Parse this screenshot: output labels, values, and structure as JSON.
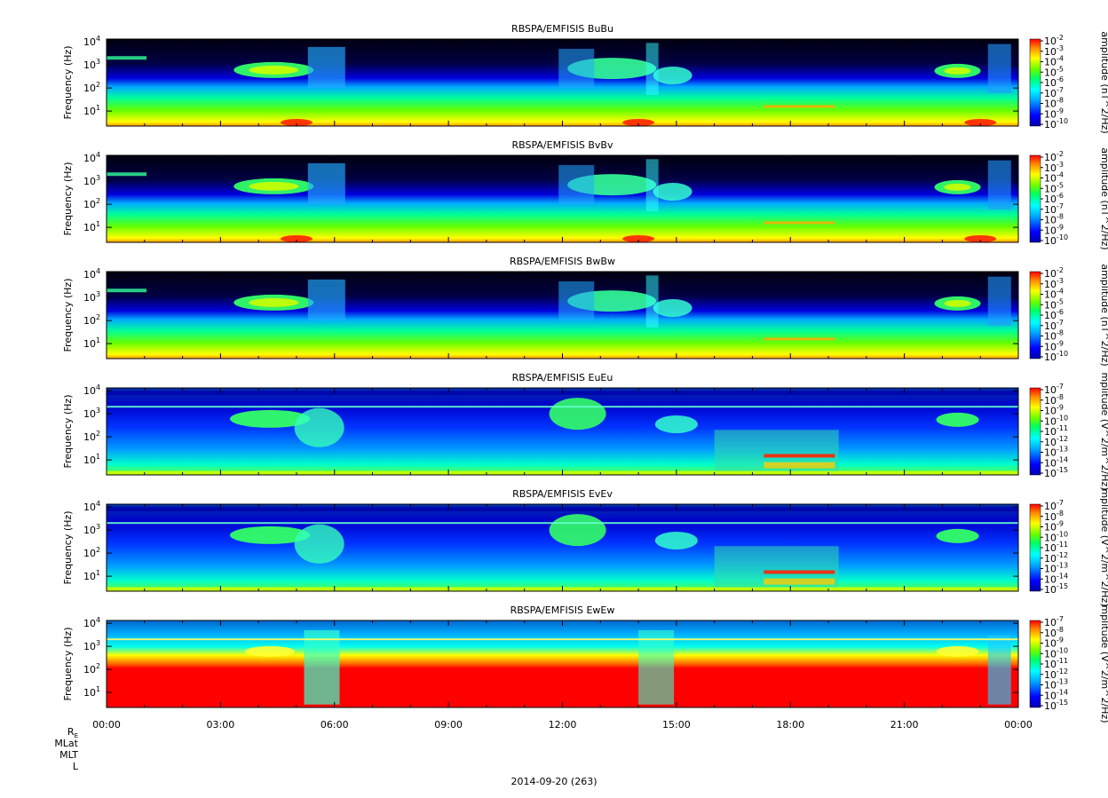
{
  "chart_data": [
    {
      "type": "heatmap",
      "title": "RBSPA/EMFISIS  BuBu",
      "ylabel": "Frequency (Hz)",
      "yscale": "log",
      "yticks": [
        "10^1",
        "10^2",
        "10^3",
        "10^4"
      ],
      "xticks": [
        "00:00",
        "03:00",
        "06:00",
        "09:00",
        "12:00",
        "15:00",
        "18:00",
        "21:00",
        "00:00"
      ],
      "colorbar": {
        "label": "amplitude (nT^2/Hz)",
        "ticks": [
          "10^-2",
          "10^-3",
          "10^-4",
          "10^-5",
          "10^-6",
          "10^-7",
          "10^-8",
          "10^-9",
          "10^-10"
        ]
      }
    },
    {
      "type": "heatmap",
      "title": "RBSPA/EMFISIS  BvBv",
      "ylabel": "Frequency (Hz)",
      "yscale": "log",
      "yticks": [
        "10^1",
        "10^2",
        "10^3",
        "10^4"
      ],
      "colorbar": {
        "label": "amplitude (nT^2/Hz)",
        "ticks": [
          "10^-2",
          "10^-3",
          "10^-4",
          "10^-5",
          "10^-6",
          "10^-7",
          "10^-8",
          "10^-9",
          "10^-10"
        ]
      }
    },
    {
      "type": "heatmap",
      "title": "RBSPA/EMFISIS  BwBw",
      "ylabel": "Frequency (Hz)",
      "yscale": "log",
      "yticks": [
        "10^1",
        "10^2",
        "10^3",
        "10^4"
      ],
      "colorbar": {
        "label": "amplitude (nT^2/Hz)",
        "ticks": [
          "10^-2",
          "10^-3",
          "10^-4",
          "10^-5",
          "10^-6",
          "10^-7",
          "10^-8",
          "10^-9",
          "10^-10"
        ]
      }
    },
    {
      "type": "heatmap",
      "title": "RBSPA/EMFISIS  EuEu",
      "ylabel": "Frequency (Hz)",
      "yscale": "log",
      "yticks": [
        "10^1",
        "10^2",
        "10^3",
        "10^4"
      ],
      "colorbar": {
        "label": "mplitude (V^2/m^2/Hz)",
        "ticks": [
          "10^-7",
          "10^-8",
          "10^-9",
          "10^-10",
          "10^-11",
          "10^-12",
          "10^-13",
          "10^-14",
          "10^-15"
        ]
      }
    },
    {
      "type": "heatmap",
      "title": "RBSPA/EMFISIS  EvEv",
      "ylabel": "Frequency (Hz)",
      "yscale": "log",
      "yticks": [
        "10^1",
        "10^2",
        "10^3",
        "10^4"
      ],
      "colorbar": {
        "label": "mplitude (V^2/m^2/Hz)",
        "ticks": [
          "10^-7",
          "10^-8",
          "10^-9",
          "10^-10",
          "10^-11",
          "10^-12",
          "10^-13",
          "10^-14",
          "10^-15"
        ]
      }
    },
    {
      "type": "heatmap",
      "title": "RBSPA/EMFISIS  EwEw",
      "ylabel": "Frequency (Hz)",
      "yscale": "log",
      "yticks": [
        "10^1",
        "10^2",
        "10^3",
        "10^4"
      ],
      "colorbar": {
        "label": "mplitude (V^2/m^2/Hz)",
        "ticks": [
          "10^-7",
          "10^-8",
          "10^-9",
          "10^-10",
          "10^-11",
          "10^-12",
          "10^-13",
          "10^-14",
          "10^-15"
        ]
      }
    }
  ],
  "ephemeris_labels": [
    "R_E",
    "MLat",
    "MLT",
    "L"
  ],
  "date_label": "2014-09-20 (263)",
  "colors": {
    "background": "#000000",
    "colormap": [
      "#0000aa",
      "#0000ff",
      "#00aaff",
      "#00ffff",
      "#00ff66",
      "#66ff00",
      "#ffff00",
      "#ff8800",
      "#ff0000"
    ]
  }
}
